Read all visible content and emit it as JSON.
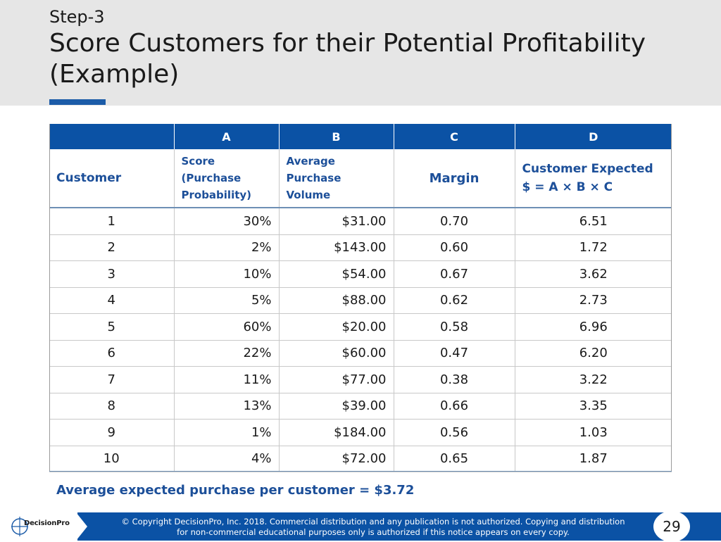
{
  "header": {
    "step": "Step-3",
    "title": "Score Customers for their Potential Profitability (Example)"
  },
  "table": {
    "column_letters": [
      "",
      "A",
      "B",
      "C",
      "D"
    ],
    "column_labels": {
      "customer": "Customer",
      "score": "Score (Purchase Probability)",
      "volume": "Average Purchase Volume",
      "margin": "Margin",
      "expected_title": "Customer Expected",
      "expected_formula": "$ = A × B × C"
    },
    "rows": [
      {
        "customer": "1",
        "score": "30%",
        "volume": "$31.00",
        "margin": "0.70",
        "expected": "6.51"
      },
      {
        "customer": "2",
        "score": "2%",
        "volume": "$143.00",
        "margin": "0.60",
        "expected": "1.72"
      },
      {
        "customer": "3",
        "score": "10%",
        "volume": "$54.00",
        "margin": "0.67",
        "expected": "3.62"
      },
      {
        "customer": "4",
        "score": "5%",
        "volume": "$88.00",
        "margin": "0.62",
        "expected": "2.73"
      },
      {
        "customer": "5",
        "score": "60%",
        "volume": "$20.00",
        "margin": "0.58",
        "expected": "6.96"
      },
      {
        "customer": "6",
        "score": "22%",
        "volume": "$60.00",
        "margin": "0.47",
        "expected": "6.20"
      },
      {
        "customer": "7",
        "score": "11%",
        "volume": "$77.00",
        "margin": "0.38",
        "expected": "3.22"
      },
      {
        "customer": "8",
        "score": "13%",
        "volume": "$39.00",
        "margin": "0.66",
        "expected": "3.35"
      },
      {
        "customer": "9",
        "score": "1%",
        "volume": "$184.00",
        "margin": "0.56",
        "expected": "1.03"
      },
      {
        "customer": "10",
        "score": "4%",
        "volume": "$72.00",
        "margin": "0.65",
        "expected": "1.87"
      }
    ]
  },
  "summary": "Average expected purchase per customer = $3.72",
  "footer": {
    "logo_text": "DecisionPro",
    "copyright_line1": "© Copyright DecisionPro, Inc.  2018. Commercial distribution and any publication is not authorized. Copying and distribution",
    "copyright_line2": "for non-commercial educational purposes only is authorized if this notice appears on every copy.",
    "page_number": "29"
  },
  "colors": {
    "accent_blue": "#0b52a5",
    "label_blue": "#1c4f99",
    "header_gray": "#e6e6e6"
  }
}
